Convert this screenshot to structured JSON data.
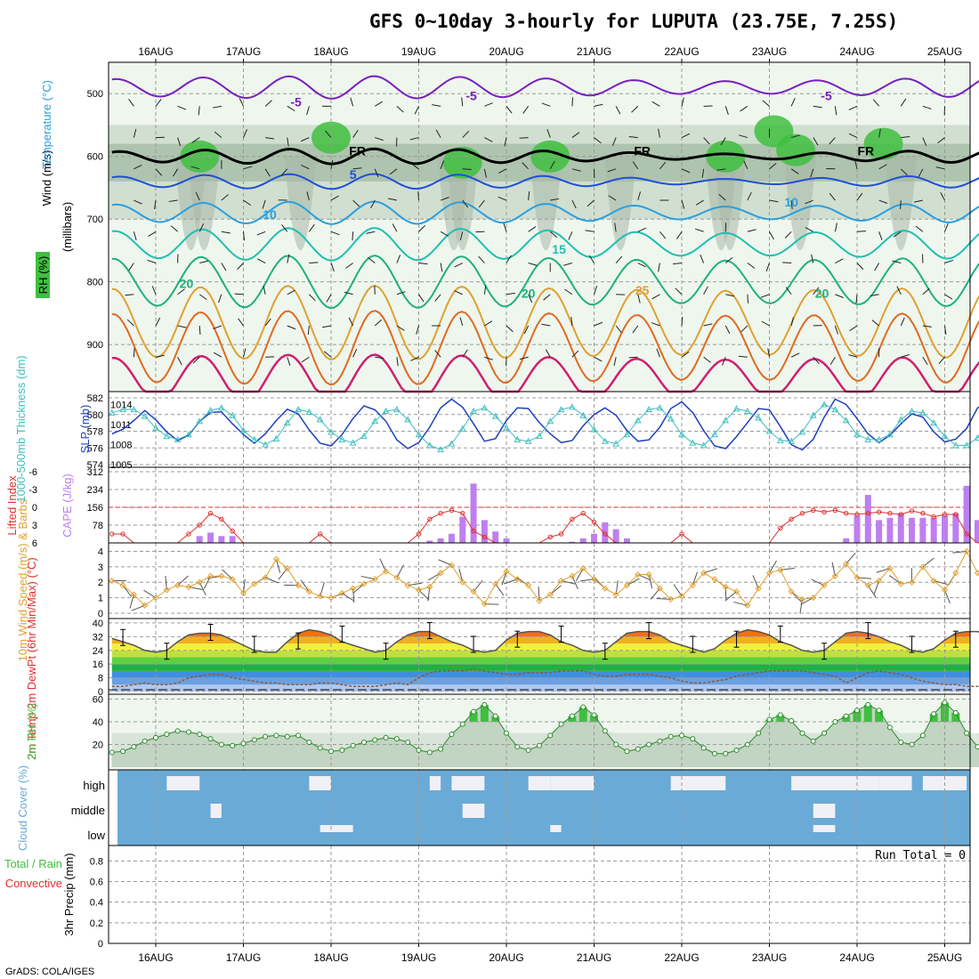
{
  "header": {
    "title": "GFS 0~10day 3-hourly for LUPUTA (23.75E, 7.25S)",
    "credit": "GrADS: COLA/IGES"
  },
  "colors": {
    "grid": "#9a9a9a",
    "rh": "#3fbf3f",
    "temp_neg": "#7a1fbf",
    "temp_fr": "#000000",
    "temp5": "#1f4fd8",
    "temp10": "#2a9fdf",
    "temp15": "#20bfb0",
    "temp20": "#1fb080",
    "temp25": "#e0a030",
    "temp30": "#e06a20",
    "temp35": "#d0206f",
    "slp": "#1f3fbf",
    "thick": "#3fbfbf",
    "li": "#e03030",
    "cape": "#bf7fef",
    "wind": "#e0a030",
    "rh2m": "#3fbf3f",
    "cloud": "#6aaad6",
    "precip_label": "#e03030"
  },
  "chart_data": [
    {
      "id": "upper_air",
      "type": "heatmap",
      "dates": [
        "16AUG",
        "17AUG",
        "18AUG",
        "19AUG",
        "20AUG",
        "21AUG",
        "22AUG",
        "23AUG",
        "24AUG",
        "25AUG"
      ],
      "ylabel": "(millibars)",
      "ylabels_left": [
        "RH (%)",
        "Temperature (°C)",
        "Wind (m/s)"
      ],
      "yticks": [
        500,
        600,
        700,
        800,
        900
      ],
      "ylim": [
        450,
        975
      ],
      "contour_labels": [
        {
          "text": "-5",
          "t": 1.6,
          "p": 520,
          "color": "temp_neg"
        },
        {
          "text": "-5",
          "t": 3.6,
          "p": 510,
          "color": "temp_neg"
        },
        {
          "text": "-5",
          "t": 7.65,
          "p": 510,
          "color": "temp_neg"
        },
        {
          "text": "FR",
          "t": 2.3,
          "p": 598,
          "color": "temp_fr"
        },
        {
          "text": "FR",
          "t": 5.55,
          "p": 598,
          "color": "temp_fr"
        },
        {
          "text": "FR",
          "t": 8.1,
          "p": 598,
          "color": "temp_fr"
        },
        {
          "text": "5",
          "t": 2.25,
          "p": 636,
          "color": "temp5"
        },
        {
          "text": "10",
          "t": 1.3,
          "p": 700,
          "color": "temp10"
        },
        {
          "text": "10",
          "t": 7.25,
          "p": 680,
          "color": "temp10"
        },
        {
          "text": "15",
          "t": 4.6,
          "p": 755,
          "color": "temp15"
        },
        {
          "text": "20",
          "t": 0.35,
          "p": 810,
          "color": "temp20"
        },
        {
          "text": "20",
          "t": 4.25,
          "p": 825,
          "color": "temp20"
        },
        {
          "text": "20",
          "t": 7.6,
          "p": 825,
          "color": "temp20"
        },
        {
          "text": "25",
          "t": 5.55,
          "p": 820,
          "color": "temp25"
        }
      ]
    },
    {
      "id": "slp_thickness",
      "type": "line",
      "yticks_left": [
        "582",
        "580",
        "578",
        "576",
        "574"
      ],
      "yticks_right": [
        "1014",
        "1011",
        "1008",
        "1005"
      ],
      "ylabel_left": "1000-500mb Thickness (dm)",
      "ylabel_right": "SLP (mb)",
      "series": [
        {
          "name": "SLP (mb)",
          "values": [
            1009.6,
            1010.3,
            1011.6,
            1013.1,
            1011.7,
            1009.9,
            1008.6,
            1009.4,
            1011.5,
            1012.8,
            1012.9,
            1011.1,
            1009.5,
            1008.2,
            1009.6,
            1011.6,
            1013.3,
            1012.6,
            1010.2,
            1008.2,
            1007.8,
            1009.5,
            1011.9,
            1013.8,
            1013.2,
            1011.5,
            1008.7,
            1007.4,
            1008.3,
            1010.6,
            1013.5,
            1014.8,
            1013.6,
            1011.1,
            1008.5,
            1008.9,
            1011.6,
            1013.5,
            1013.4,
            1011.3,
            1009.6,
            1008.3,
            1008.6,
            1010.8,
            1012.5,
            1013.5,
            1012.4,
            1010.1,
            1008.5,
            1008.7,
            1010.6,
            1013.4,
            1014.4,
            1012.8,
            1010.1,
            1007.8,
            1007.4,
            1009.2,
            1011.3,
            1013.4,
            1013.2,
            1010.7,
            1008.0,
            1007.2,
            1008.8,
            1012.1,
            1014.8,
            1014.0,
            1011.9,
            1009.6,
            1008.3,
            1009.4,
            1011.1,
            1012.6,
            1012.1,
            1009.9,
            1008.4,
            1008.8,
            1010.4,
            1013.5,
            1014.4
          ]
        },
        {
          "name": "1000-500mb Thickness (dm)",
          "values": [
            580.2,
            580.6,
            580.6,
            579.8,
            578.4,
            577.4,
            577.0,
            577.6,
            579.2,
            580.5,
            580.8,
            579.9,
            578.1,
            577.0,
            576.4,
            577.1,
            579.0,
            580.6,
            580.3,
            579.4,
            577.9,
            577.0,
            576.6,
            577.4,
            579.2,
            580.4,
            580.6,
            579.4,
            577.6,
            576.3,
            575.8,
            576.5,
            578.3,
            580.4,
            580.8,
            579.8,
            578.4,
            577.0,
            576.8,
            577.4,
            579.2,
            580.6,
            580.9,
            579.9,
            578.2,
            576.8,
            576.5,
            577.6,
            579.3,
            580.6,
            580.8,
            579.5,
            577.6,
            576.6,
            576.3,
            577.6,
            579.3,
            580.7,
            580.4,
            579.6,
            578.0,
            576.9,
            576.8,
            577.9,
            579.9,
            581.2,
            580.6,
            579.3,
            577.6,
            577.0,
            577.0,
            577.6,
            579.4,
            580.4,
            580.2,
            579.0,
            577.4,
            576.3,
            576.3,
            577.2,
            578.9
          ]
        }
      ]
    },
    {
      "id": "cape_li",
      "type": "bar",
      "yticks_left": [
        "-6",
        "-3",
        "0",
        "3",
        "6"
      ],
      "yticks_right": [
        "312",
        "234",
        "156",
        "78"
      ],
      "ylabel_left": "Lifted Index",
      "ylabel_right": "CAPE (J/kg)",
      "series": [
        {
          "name": "CAPE (J/kg)",
          "values": [
            0,
            0,
            0,
            0,
            0,
            0,
            0,
            0,
            30,
            45,
            30,
            30,
            0,
            0,
            0,
            0,
            0,
            0,
            0,
            0,
            0,
            0,
            0,
            0,
            0,
            0,
            0,
            0,
            0,
            10,
            20,
            40,
            115,
            260,
            100,
            50,
            20,
            0,
            0,
            0,
            0,
            0,
            5,
            20,
            40,
            90,
            60,
            20,
            0,
            0,
            0,
            0,
            0,
            0,
            0,
            0,
            0,
            0,
            0,
            0,
            0,
            0,
            0,
            0,
            0,
            0,
            0,
            20,
            120,
            210,
            100,
            110,
            130,
            110,
            110,
            110,
            120,
            130,
            250,
            100,
            40,
            110,
            210,
            170,
            30
          ]
        },
        {
          "name": "Lifted Index",
          "values": [
            4.5,
            4.5,
            6,
            6,
            6,
            6,
            6,
            4.5,
            3.0,
            1.0,
            2.0,
            4.0,
            6,
            6,
            6,
            6,
            6,
            6,
            6,
            4.5,
            6,
            6,
            6,
            6,
            6,
            6,
            6,
            6,
            4.5,
            2.0,
            1.0,
            0.5,
            1.0,
            4.0,
            5.0,
            6,
            6,
            6,
            6,
            6,
            5,
            4.5,
            2.0,
            1.0,
            2.5,
            4.5,
            6,
            6,
            6,
            6,
            6,
            6,
            4.5,
            6,
            6,
            6,
            6,
            6,
            6,
            6,
            6,
            3.5,
            2.0,
            1.0,
            0.5,
            0.8,
            0.5,
            1.0,
            1.2,
            1.0,
            0.8,
            1.0,
            1.2,
            0.6,
            1.0,
            1.6,
            1.2,
            1.2,
            4.5,
            6,
            6
          ]
        }
      ]
    },
    {
      "id": "wind10m",
      "type": "line",
      "yticks": [
        "4",
        "3",
        "2",
        "1",
        "0"
      ],
      "ylabel": "10m Wind Speed (m/s) & Barbs",
      "series": [
        {
          "name": "10m Wind Speed (m/s)",
          "values": [
            2.1,
            1.8,
            1.2,
            0.5,
            1.0,
            1.5,
            1.8,
            1.7,
            2.0,
            2.4,
            2.4,
            2.2,
            1.3,
            1.9,
            2.3,
            3.5,
            2.9,
            1.8,
            1.4,
            1.1,
            1.0,
            1.3,
            1.6,
            1.9,
            2.2,
            2.7,
            2.3,
            1.8,
            1.5,
            1.7,
            2.6,
            3.1,
            2.0,
            1.4,
            0.6,
            1.9,
            2.7,
            2.2,
            1.8,
            0.8,
            1.2,
            2.1,
            2.4,
            2.9,
            2.2,
            1.6,
            1.2,
            1.8,
            2.5,
            2.5,
            1.6,
            0.9,
            1.1,
            1.8,
            2.6,
            2.2,
            1.7,
            1.4,
            0.5,
            1.6,
            2.6,
            2.8,
            1.4,
            0.9,
            1.0,
            1.8,
            2.4,
            3.2,
            2.3,
            1.8,
            2.1,
            2.9,
            1.9,
            2.0,
            3.0,
            2.1,
            1.5,
            2.6,
            4.0,
            2.6,
            2.2,
            1.9,
            2.3,
            2.5,
            1.8,
            1.2,
            1.5,
            2.0
          ]
        }
      ]
    },
    {
      "id": "temp2m",
      "type": "area",
      "yticks": [
        "40",
        "32",
        "24",
        "16",
        "8",
        "0"
      ],
      "ylabel": "2m Temp 2m DewPt (6hr Min/Max) (°C)",
      "series": [
        {
          "name": "2m Temp",
          "values": [
            31,
            29,
            27,
            24,
            23,
            24,
            29,
            33,
            34,
            34,
            33,
            30,
            27,
            24,
            23,
            23,
            29,
            34,
            36,
            35,
            33,
            29,
            27,
            25,
            23,
            24,
            29,
            33,
            35,
            35,
            32,
            29,
            27,
            24,
            23,
            24,
            30,
            34,
            35,
            35,
            33,
            29,
            27,
            24,
            23,
            24,
            29,
            34,
            35,
            35,
            33,
            29,
            27,
            25,
            23,
            25,
            30,
            34,
            36,
            35,
            33,
            29,
            27,
            24,
            23,
            24,
            29,
            34,
            35,
            34,
            32,
            29,
            27,
            24,
            23,
            25,
            30,
            34,
            35,
            35,
            33,
            29,
            26,
            24,
            22,
            21,
            24
          ]
        },
        {
          "name": "2m DewPt",
          "values": [
            3,
            3,
            4,
            5,
            4,
            4,
            5,
            8,
            9,
            10,
            10,
            8,
            7,
            6,
            5,
            5,
            4,
            4,
            4,
            5,
            5,
            4,
            3,
            3,
            3,
            4,
            5,
            4,
            8,
            11,
            12,
            12,
            12,
            13,
            12,
            11,
            10,
            10,
            11,
            11,
            11,
            12,
            12,
            12,
            10,
            9,
            9,
            10,
            10,
            10,
            9,
            8,
            6,
            5,
            5,
            6,
            7,
            9,
            10,
            11,
            12,
            12,
            12,
            12,
            11,
            10,
            9,
            5,
            8,
            11,
            12,
            11,
            10,
            8,
            6,
            5,
            4,
            4,
            3,
            3,
            3,
            3,
            3,
            3,
            4
          ]
        }
      ]
    },
    {
      "id": "rh2m",
      "type": "area",
      "yticks": [
        "60",
        "40",
        "20"
      ],
      "ylabel": "2m RH (%)",
      "series": [
        {
          "name": "2m RH (%)",
          "values": [
            13,
            14,
            18,
            23,
            26,
            29,
            32,
            31,
            29,
            25,
            20,
            19,
            21,
            24,
            27,
            28,
            27,
            28,
            22,
            17,
            14,
            15,
            19,
            22,
            24,
            26,
            25,
            22,
            15,
            13,
            16,
            29,
            38,
            49,
            55,
            45,
            30,
            18,
            15,
            19,
            28,
            38,
            45,
            53,
            46,
            32,
            20,
            14,
            16,
            20,
            23,
            27,
            28,
            25,
            17,
            12,
            12,
            15,
            20,
            30,
            42,
            46,
            41,
            30,
            23,
            30,
            40,
            45,
            50,
            55,
            50,
            35,
            22,
            20,
            28,
            47,
            57,
            48,
            30,
            18,
            14,
            12,
            14,
            18,
            20,
            25,
            22
          ]
        }
      ]
    },
    {
      "id": "cloud_cover",
      "type": "bar",
      "ylabel": "Cloud Cover (%)",
      "levels": [
        "high",
        "middle",
        "low"
      ]
    },
    {
      "id": "precip3hr",
      "type": "bar",
      "yticks": [
        "0.8",
        "0.6",
        "0.4",
        "0.2",
        "0"
      ],
      "ylabel": "3hr Precip (mm)",
      "ylabel_left": "Total / Rain Convective",
      "run_total": "Run Total = 0",
      "values": []
    }
  ]
}
